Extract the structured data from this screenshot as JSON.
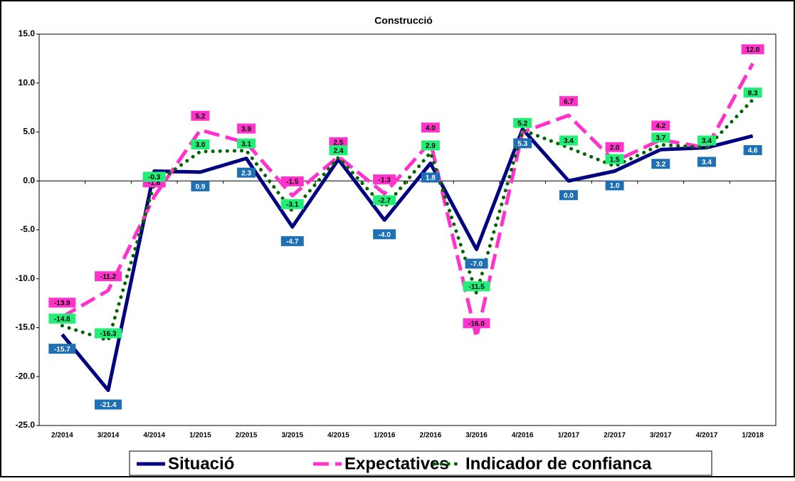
{
  "chart_data": {
    "type": "line",
    "title": "Construcció",
    "categories": [
      "2/2014",
      "3/2014",
      "4/2014",
      "1/2015",
      "2/2015",
      "3/2015",
      "4/2015",
      "1/2016",
      "2/2016",
      "3/2016",
      "4/2016",
      "1/2017",
      "2/2017",
      "3/2017",
      "4/2017",
      "1/2018"
    ],
    "ylim": [
      -25,
      15
    ],
    "yticks": [
      {
        "value": -25,
        "label": "-25.0"
      },
      {
        "value": -20,
        "label": "-20.0"
      },
      {
        "value": -15,
        "label": "-15.0"
      },
      {
        "value": -10,
        "label": "-10.0"
      },
      {
        "value": -5,
        "label": "-5.0"
      },
      {
        "value": 0,
        "label": "0.0"
      },
      {
        "value": 5,
        "label": "5.0"
      },
      {
        "value": 10,
        "label": "10.0"
      },
      {
        "value": 15,
        "label": "15.0"
      }
    ],
    "legend": "bottom",
    "series": [
      {
        "name": "Situació",
        "color": "#000080",
        "style": "solid",
        "values": [
          -15.7,
          -21.4,
          1.0,
          0.9,
          2.3,
          -4.7,
          2.2,
          -4.0,
          1.8,
          -7.0,
          5.3,
          0.0,
          1.0,
          3.2,
          3.4,
          4.6
        ],
        "value_labels": [
          "-15.7",
          "-21.4",
          null,
          "0.9",
          "2.3",
          "-4.7",
          null,
          "-4.0",
          "1.8",
          "-7.0",
          "5.3",
          "0.0",
          "1.0",
          "3.2",
          "3.4",
          "4.6"
        ]
      },
      {
        "name": "Expectatives",
        "color": "#ff33cc",
        "style": "dashed",
        "values": [
          -13.9,
          -11.2,
          -1.6,
          5.2,
          3.9,
          -1.5,
          2.5,
          -1.3,
          4.0,
          -16.0,
          5.0,
          6.7,
          2.0,
          4.2,
          3.4,
          12.0
        ],
        "value_labels": [
          "-13.9",
          "-11.2",
          "-1.6",
          "5.2",
          "3.9",
          "-1.5",
          "2.5",
          "-1.3",
          "4.0",
          "-16.0",
          null,
          "6.7",
          "2.0",
          "4.2",
          null,
          "12.0"
        ]
      },
      {
        "name": "Indicador de confianca",
        "color": "#006400",
        "style": "dotted",
        "values": [
          -14.8,
          -16.3,
          -0.3,
          3.0,
          3.1,
          -3.1,
          2.4,
          -2.7,
          2.9,
          -11.5,
          5.2,
          3.4,
          1.5,
          3.7,
          3.4,
          8.3
        ],
        "value_labels": [
          "-14.8",
          "-16.3",
          "-0.3",
          "3.0",
          "3.1",
          "-3.1",
          "2.4",
          "-2.7",
          "2.9",
          "-11.5",
          "5.2",
          "3.4",
          "1.5",
          "3.7",
          "3.4",
          "8.3"
        ]
      }
    ]
  }
}
